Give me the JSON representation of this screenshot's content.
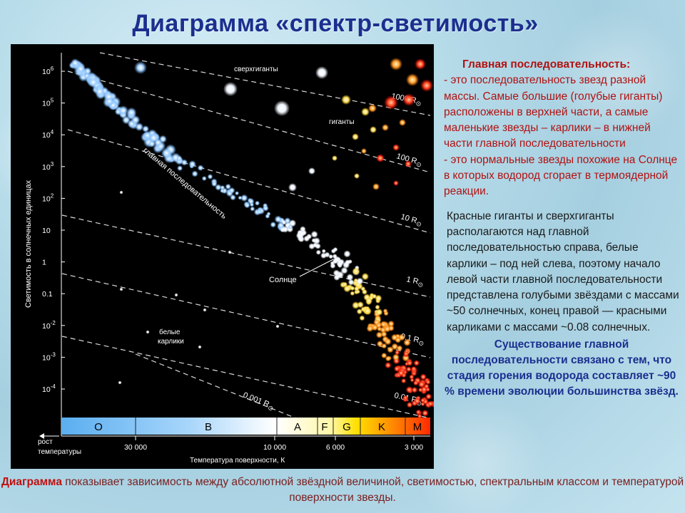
{
  "title": "Диаграмма «спектр-светимость»",
  "diagram": {
    "y_axis_label": "Светимость в солнечных единицах",
    "y_ticks": [
      {
        "base": "10",
        "exp": "6"
      },
      {
        "base": "10",
        "exp": "5"
      },
      {
        "base": "10",
        "exp": "4"
      },
      {
        "base": "10",
        "exp": "3"
      },
      {
        "base": "10",
        "exp": "2"
      },
      {
        "base": "10",
        "exp": ""
      },
      {
        "base": "1",
        "exp": ""
      },
      {
        "base": "0.1",
        "exp": ""
      },
      {
        "base": "10",
        "exp": "-2"
      },
      {
        "base": "10",
        "exp": "-3"
      },
      {
        "base": "10",
        "exp": "-4"
      }
    ],
    "radius_lines": [
      "1000 R",
      "100 R",
      "10 R",
      "1 R",
      "0.1 R",
      "0.01 R",
      "0.001 R"
    ],
    "region_labels": {
      "supergiants": "сверхгиганты",
      "giants": "гиганты",
      "main_sequence": "главная последовательность",
      "sun": "Солнце",
      "white_dwarfs_1": "белые",
      "white_dwarfs_2": "карлики"
    },
    "spectral_classes": [
      "O",
      "B",
      "A",
      "F",
      "G",
      "K",
      "M"
    ],
    "x_ticks": [
      "30 000",
      "10 000",
      "6 000",
      "3 000"
    ],
    "temp_growth_1": "рост",
    "temp_growth_2": "температуры",
    "x_axis_label": "Температура поверхности, К"
  },
  "side_text": {
    "heading": "Главная последовательность:",
    "body1": "- это последовательность звезд разной массы. Самые большие (голубые гиганты) расположены в верхней части, а  самые маленькие звезды – карлики – в нижней части главной последовательности",
    "body2": "- это нормальные звезды похожие на Солнце в которых водород сгорает в термоядерной реакции.",
    "para2": "Красные гиганты и сверхгиганты располагаются над главной последовательностью справа, белые карлики – под ней слева, поэтому начало левой части главной последовательности представлена голубыми звёздами с массами ~50 солнечных, конец правой — красными карликами с массами ~0.08 солнечных.",
    "para3": "Существование главной последовательности связано с тем, что стадия горения водорода составляет ~90 % времени эволюции большинства звёзд."
  },
  "caption": {
    "lead": "Диаграмма",
    "rest": " показывает зависимость между абсолютной звёздной величиной, светимостью, спектральным классом и температурой поверхности звезды."
  },
  "colors": {
    "title": "#1b2f8f",
    "side_heading": "#b01212",
    "side_emphasis": "#1b2f8f"
  }
}
